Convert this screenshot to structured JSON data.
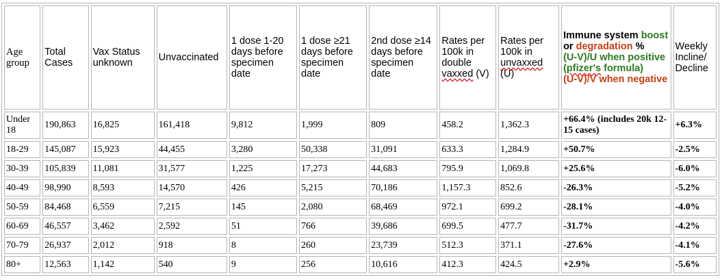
{
  "colors": {
    "green": "#2b7a1f",
    "red": "#c53f14",
    "border": "#b4b4b4"
  },
  "header": {
    "age_group": "Age group",
    "total_cases": "Total Cases",
    "vax_unknown": "Vax Status unknown",
    "unvaccinated": "Unvaccinated",
    "dose_1_20": "1 dose 1-20 days before specimen date",
    "dose_21": "1 dose ≥21 days  before specimen date",
    "dose2_14": "2nd dose ≥14 days before specimen date",
    "rates_double_a": "Rates per 100k in double ",
    "rates_double_b": "vaxxed",
    "rates_double_c": " (V)",
    "rates_unvax_a": "Rates per 100k  in ",
    "rates_unvax_b": "unvaxxed",
    "rates_unvax_c": " (U)",
    "immune_1": "Immune system ",
    "immune_2": "boost",
    "immune_3": " or ",
    "immune_4": "degradation",
    "immune_5": " %",
    "immune_6": "(U-V)/U when positive (",
    "immune_7": "pfizer's",
    "immune_8": " formula)",
    "immune_9": "(U-V)/V when negative",
    "weekly": "Weekly Incline/ Decline"
  },
  "rows": [
    {
      "age": "Under 18",
      "total": "190,863",
      "unknown": "16,825",
      "unvax": "161,418",
      "d1_20": "9,812",
      "d21": "1,999",
      "d2": "809",
      "rate_v": "458.2",
      "rate_u": "1,362.3",
      "immune": "+66.4% (includes 20k 12-15 cases)",
      "immune_color": "green",
      "weekly": "+6.3%",
      "weekly_color": "green"
    },
    {
      "age": "18-29",
      "total": "145,087",
      "unknown": "15,923",
      "unvax": "44,455",
      "d1_20": "3,280",
      "d21": "50,338",
      "d2": "31,091",
      "rate_v": "633.3",
      "rate_u": "1,284.9",
      "immune": "+50.7%",
      "immune_color": "green",
      "weekly": "-2.5%",
      "weekly_color": "red"
    },
    {
      "age": "30-39",
      "total": "105,839",
      "unknown": "11,081",
      "unvax": "31,577",
      "d1_20": "1,225",
      "d21": "17,273",
      "d2": "44,683",
      "rate_v": "795.9",
      "rate_u": "1,069.8",
      "immune": "+25.6%",
      "immune_color": "green",
      "weekly": "-6.0%",
      "weekly_color": "red"
    },
    {
      "age": "40-49",
      "total": "98,990",
      "unknown": "8,593",
      "unvax": "14,570",
      "d1_20": "426",
      "d21": "5,215",
      "d2": "70,186",
      "rate_v": "1,157.3",
      "rate_u": "852.6",
      "immune": "-26.3%",
      "immune_color": "red",
      "weekly": "-5.2%",
      "weekly_color": "red"
    },
    {
      "age": "50-59",
      "total": "84,468",
      "unknown": "6,559",
      "unvax": "7,215",
      "d1_20": "145",
      "d21": "2,080",
      "d2": "68,469",
      "rate_v": "972.1",
      "rate_u": "699.2",
      "immune": "-28.1%",
      "immune_color": "red",
      "weekly": "-4.0%",
      "weekly_color": "red"
    },
    {
      "age": "60-69",
      "total": "46,557",
      "unknown": "3,462",
      "unvax": "2,592",
      "d1_20": "51",
      "d21": "766",
      "d2": "39,686",
      "rate_v": "699.5",
      "rate_u": "477.7",
      "immune": "-31.7%",
      "immune_color": "red",
      "weekly": "-4.2%",
      "weekly_color": "red"
    },
    {
      "age": "70-79",
      "total": "26,937",
      "unknown": "2,012",
      "unvax": "918",
      "d1_20": "8",
      "d21": "260",
      "d2": "23,739",
      "rate_v": "512.3",
      "rate_u": "371.1",
      "immune": "-27.6%",
      "immune_color": "red",
      "weekly": "-4.1%",
      "weekly_color": "red"
    },
    {
      "age": "80+",
      "total": "12,563",
      "unknown": "1,142",
      "unvax": "540",
      "d1_20": "9",
      "d21": "256",
      "d2": "10,616",
      "rate_v": "412.3",
      "rate_u": "424.5",
      "immune": "+2.9%",
      "immune_color": "green",
      "weekly": "-5.6%",
      "weekly_color": "red"
    }
  ]
}
